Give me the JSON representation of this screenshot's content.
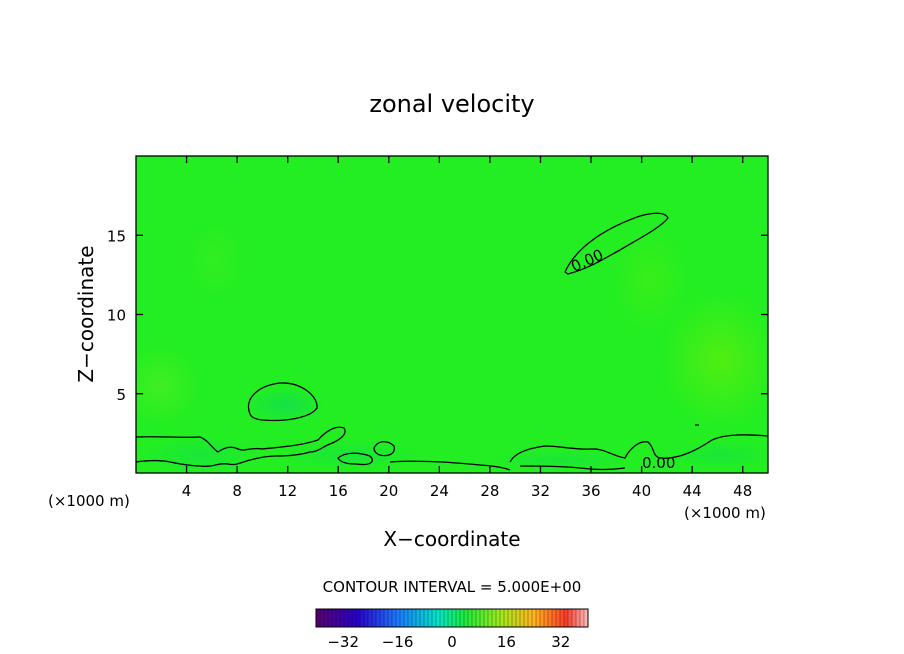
{
  "chart_data": {
    "type": "heatmap",
    "title": "zonal velocity",
    "xlabel": "X−coordinate",
    "ylabel": "Z−coordinate",
    "x_unit_left": "(×1000 m)",
    "x_unit_right": "(×1000 m)",
    "xlim": [
      0,
      50
    ],
    "ylim": [
      0,
      20
    ],
    "x_ticks": [
      4,
      8,
      12,
      16,
      20,
      24,
      28,
      32,
      36,
      40,
      44,
      48
    ],
    "y_ticks": [
      5,
      10,
      15
    ],
    "field_color": "#22ee22",
    "contour_labels": [
      {
        "text": "0.00",
        "x": 35.5,
        "z": 13.4
      },
      {
        "text": "0.00",
        "x": 41.5,
        "z": 0.7
      }
    ],
    "contour_interval_label": "CONTOUR INTERVAL = 5.000E+00",
    "colorbar": {
      "range": [
        -40,
        40
      ],
      "ticks": [
        -32,
        -16,
        0,
        16,
        32
      ]
    }
  }
}
